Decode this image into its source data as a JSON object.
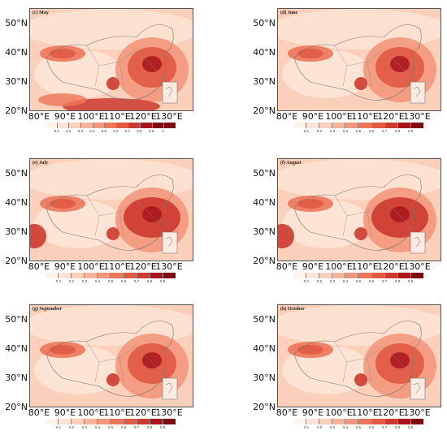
{
  "colors": {
    "levels": [
      "#fdf4ee",
      "#fde4d6",
      "#fbd0ba",
      "#f7b49a",
      "#f3977c",
      "#ec7659",
      "#e05a44",
      "#cd3a2f",
      "#a8161c",
      "#7d0b12"
    ]
  },
  "latitude_labels": [
    "50°N",
    "40°N",
    "30°N",
    "20°N"
  ],
  "longitude_labels": [
    "80°E",
    "90°E",
    "100°E",
    "110°E",
    "120°E",
    "130°E"
  ],
  "panels": [
    {
      "label": "(c) May",
      "colorbar_ticks": [
        "0.1",
        "0.2",
        "0.3",
        "0.4",
        "0.5",
        "0.6",
        "0.7",
        "0.8",
        "0.9",
        "1"
      ]
    },
    {
      "label": "(d) June",
      "colorbar_ticks": [
        "0.1",
        "0.2",
        "0.3",
        "0.4",
        "0.5",
        "0.6",
        "0.7",
        "0.8",
        "0.9"
      ]
    },
    {
      "label": "(e) July",
      "colorbar_ticks": [
        "0.1",
        "0.2",
        "0.3",
        "0.4",
        "0.5",
        "0.6",
        "0.7",
        "0.8",
        "0.9"
      ]
    },
    {
      "label": "(f) August",
      "colorbar_ticks": [
        "0.1",
        "0.2",
        "0.3",
        "0.4",
        "0.5",
        "0.6",
        "0.7",
        "0.8",
        "0.9"
      ]
    },
    {
      "label": "(g) September",
      "colorbar_ticks": [
        "0.1",
        "0.2",
        "0.3",
        "0.4",
        "0.5",
        "0.6",
        "0.7",
        "0.8",
        "0.9"
      ]
    },
    {
      "label": "(h) October",
      "colorbar_ticks": [
        "0.1",
        "0.2",
        "0.3",
        "0.4",
        "0.5",
        "0.6",
        "0.7",
        "0.8",
        "0.9"
      ]
    }
  ]
}
